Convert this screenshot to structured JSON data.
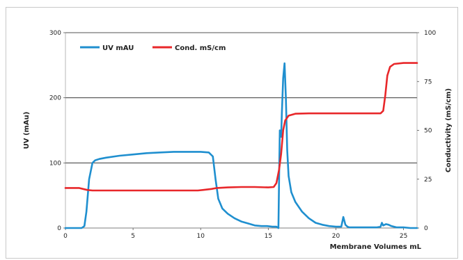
{
  "chart_data": {
    "type": "line",
    "title": "",
    "xlabel": "Membrane Volumes mL",
    "ylabel_left": "UV (mAu)",
    "ylabel_right": "Conductivity (mS/cm)",
    "xlim": [
      0,
      26
    ],
    "ylim_left": [
      0,
      300
    ],
    "ylim_right": [
      0,
      100
    ],
    "x_ticks": [
      0,
      5,
      10,
      15,
      20,
      25
    ],
    "y_ticks_left": [
      0,
      100,
      200,
      300
    ],
    "y_ticks_right": [
      0,
      25,
      50,
      75,
      100
    ],
    "gridlines_left": [
      100,
      200,
      300
    ],
    "grid": "horizontal at left-axis ticks",
    "legend_position": "top-left",
    "series": [
      {
        "name": "UV mAU",
        "axis": "left",
        "color": "#1f8fcf",
        "x": [
          0,
          1.2,
          1.4,
          1.55,
          1.75,
          2.0,
          2.2,
          2.5,
          3,
          4,
          5,
          6,
          7,
          8,
          9,
          10,
          10.6,
          10.9,
          11.1,
          11.3,
          11.6,
          12,
          12.5,
          13,
          13.5,
          14,
          14.5,
          14.9,
          15.3,
          15.6,
          15.75,
          15.8,
          15.85,
          15.95,
          16.0,
          16.1,
          16.2,
          16.3,
          16.4,
          16.5,
          16.7,
          17.0,
          17.5,
          18,
          18.5,
          19,
          19.5,
          20.0,
          20.4,
          20.55,
          20.7,
          20.85,
          21.0,
          21.5,
          22,
          22.5,
          23.0,
          23.3,
          23.4,
          23.5,
          23.7,
          23.9,
          24.1,
          24.5,
          25,
          25.5,
          26
        ],
        "values": [
          0,
          0,
          3,
          25,
          75,
          100,
          104,
          106,
          108,
          111,
          113,
          115,
          116,
          117,
          117,
          117,
          116,
          110,
          75,
          45,
          30,
          22,
          15,
          10,
          7,
          4,
          3,
          3,
          2,
          2,
          0,
          80,
          150,
          140,
          175,
          230,
          253,
          200,
          120,
          80,
          55,
          40,
          25,
          15,
          8,
          5,
          3,
          2,
          2,
          17,
          5,
          2,
          1,
          1,
          1,
          1,
          1,
          2,
          8,
          4,
          6,
          5,
          3,
          1,
          1,
          0,
          0
        ]
      },
      {
        "name": "Cond. mS/cm",
        "axis": "right",
        "color": "#e8272a",
        "x": [
          0,
          1.0,
          1.3,
          1.6,
          2.0,
          4,
          6,
          8,
          9.8,
          10.2,
          10.8,
          11.2,
          12,
          13,
          14,
          15.0,
          15.4,
          15.6,
          15.8,
          15.95,
          16.1,
          16.25,
          16.5,
          17.0,
          18,
          20,
          22,
          23.3,
          23.5,
          23.65,
          23.8,
          24.0,
          24.3,
          25,
          26
        ],
        "values": [
          20.5,
          20.5,
          20,
          19.5,
          19.2,
          19.2,
          19.2,
          19.2,
          19.2,
          19.5,
          20,
          20.5,
          20.8,
          21,
          21,
          20.8,
          21,
          23,
          30,
          38,
          50,
          55,
          57.5,
          58.5,
          58.7,
          58.7,
          58.7,
          58.7,
          60,
          68,
          78,
          82.5,
          84,
          84.5,
          84.5
        ]
      }
    ]
  }
}
